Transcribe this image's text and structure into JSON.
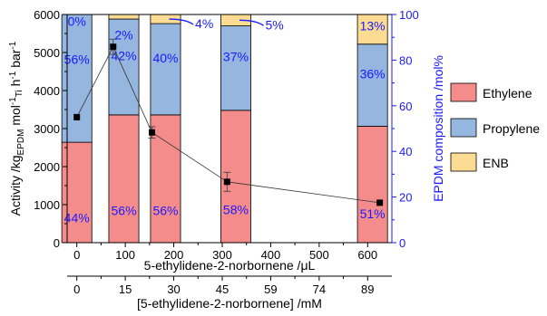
{
  "chart_data": {
    "type": "bar",
    "x_top_axis": {
      "label": "5-ethylidene-2-norbornene /μL",
      "range": [
        -20,
        650
      ],
      "ticks": [
        0,
        100,
        200,
        300,
        400,
        500,
        600
      ]
    },
    "x_bottom_axis": {
      "label": "[5-ethylidene-2-norbornene] /mM",
      "ticks": [
        {
          "pos": 0,
          "label": "0"
        },
        {
          "pos": 100,
          "label": "15"
        },
        {
          "pos": 200,
          "label": "30"
        },
        {
          "pos": 300,
          "label": "45"
        },
        {
          "pos": 400,
          "label": "59"
        },
        {
          "pos": 500,
          "label": "74"
        },
        {
          "pos": 600,
          "label": "89"
        }
      ]
    },
    "y_left_axis": {
      "label_main": "Activity /kg",
      "label_sub1": "EPDM",
      "label_mid": " mol",
      "label_sup2": "-1",
      "label_sub2": "Ti",
      "label_end": " h",
      "label_sup3": "-1",
      "label_end2": " bar",
      "label_sup4": "-1",
      "range": [
        0,
        6000
      ],
      "ticks": [
        0,
        1000,
        2000,
        3000,
        4000,
        5000,
        6000
      ]
    },
    "y_right_axis": {
      "label": "EPDM composition /mol%",
      "range": [
        0,
        100
      ],
      "ticks": [
        0,
        20,
        40,
        60,
        80,
        100
      ]
    },
    "bar_width_ul": 62,
    "bars": [
      {
        "x": 0,
        "ethylene": 44,
        "propylene": 56,
        "enb": 0,
        "labels": {
          "ethylene": "44%",
          "propylene": "56%",
          "enb": "0%"
        }
      },
      {
        "x": 97,
        "ethylene": 56,
        "propylene": 42,
        "enb": 2,
        "labels": {
          "ethylene": "56%",
          "propylene": "42%",
          "enb": "2%"
        }
      },
      {
        "x": 183,
        "ethylene": 56,
        "propylene": 40,
        "enb": 4,
        "labels": {
          "ethylene": "56%",
          "propylene": "40%",
          "enb": "4%"
        }
      },
      {
        "x": 328,
        "ethylene": 58,
        "propylene": 37,
        "enb": 5,
        "labels": {
          "ethylene": "58%",
          "propylene": "37%",
          "enb": "5%"
        }
      },
      {
        "x": 610,
        "ethylene": 51,
        "propylene": 36,
        "enb": 13,
        "labels": {
          "ethylene": "51%",
          "propylene": "36%",
          "enb": "13%"
        }
      }
    ],
    "activity_series": {
      "x": [
        0,
        75,
        155,
        310,
        625
      ],
      "y": [
        3300,
        5150,
        2900,
        1600,
        1050
      ],
      "err": [
        0,
        200,
        150,
        250,
        0
      ]
    },
    "legend": {
      "placement": "right",
      "entries": [
        {
          "name": "Ethylene",
          "color": "#f48c8c"
        },
        {
          "name": "Propylene",
          "color": "#94b6df"
        },
        {
          "name": "ENB",
          "color": "#fbdc92"
        }
      ]
    },
    "colors": {
      "ethylene": "#f48c8c",
      "propylene": "#94b6df",
      "enb": "#fbdc92",
      "percent_text": "#1a1aff",
      "right_axis": "#1a1aff"
    }
  }
}
